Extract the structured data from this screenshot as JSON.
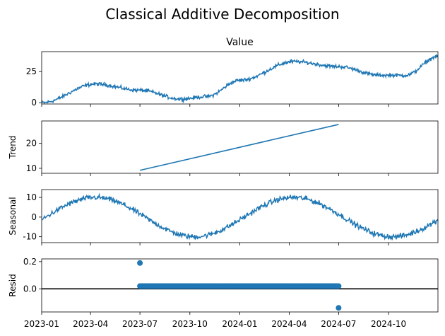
{
  "chart_data": {
    "type": "line",
    "title": "Classical Additive Decomposition",
    "x_start": "2023-01-01",
    "x_end": "2024-12-31",
    "x_ticks": [
      "2023-01",
      "2023-04",
      "2023-07",
      "2023-10",
      "2024-01",
      "2024-04",
      "2024-07",
      "2024-10"
    ],
    "line_color": "#1f77b4",
    "panels": [
      {
        "id": "value",
        "subplot_title": "Value",
        "ylabel": "",
        "ylim": [
          -1,
          41
        ],
        "yticks": [
          0,
          25
        ],
        "kind": "line",
        "description_points": {
          "x": [
            "2023-01-01",
            "2023-04-10",
            "2023-07-01",
            "2023-09-15",
            "2023-11-01",
            "2024-01-01",
            "2024-04-10",
            "2024-07-01",
            "2024-09-15",
            "2024-11-01",
            "2024-12-31"
          ],
          "y": [
            0,
            15,
            10,
            3,
            5,
            18,
            33,
            29,
            22,
            22,
            37
          ]
        }
      },
      {
        "id": "trend",
        "subplot_title": "",
        "ylabel": "Trend",
        "ylim": [
          8,
          29
        ],
        "yticks": [
          10,
          20
        ],
        "kind": "line",
        "x_range": [
          "2023-07-01",
          "2024-07-01"
        ],
        "y_range": [
          9.2,
          27.6
        ]
      },
      {
        "id": "seasonal",
        "subplot_title": "",
        "ylabel": "Seasonal",
        "ylim": [
          -13,
          14
        ],
        "yticks": [
          -10,
          0,
          10
        ],
        "kind": "line",
        "amplitude": 10,
        "peak_date": "2023-04-10"
      },
      {
        "id": "resid",
        "subplot_title": "",
        "ylabel": "Resid",
        "ylim": [
          -0.17,
          0.22
        ],
        "yticks": [
          -0.0,
          0.2
        ],
        "ytick_labels": [
          "0.0",
          "0.2"
        ],
        "kind": "scatter",
        "x_range": [
          "2023-07-01",
          "2024-07-01"
        ],
        "typical_value": 0.02,
        "outliers": [
          {
            "x": "2023-07-01",
            "y": 0.19
          },
          {
            "x": "2024-07-01",
            "y": -0.14
          }
        ],
        "zero_line": true
      }
    ]
  }
}
